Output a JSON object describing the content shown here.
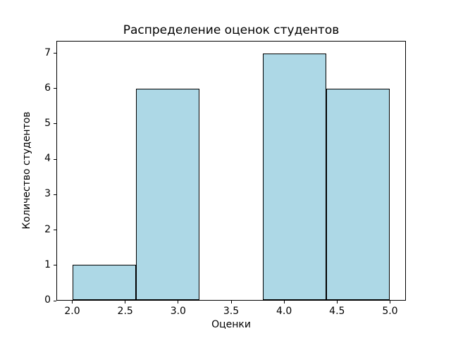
{
  "chart_data": {
    "type": "bar",
    "chart_kind": "histogram",
    "title": "Распределение оценок студентов",
    "xlabel": "Оценки",
    "ylabel": "Количество студентов",
    "bin_edges": [
      2.0,
      2.6,
      3.2,
      3.8,
      4.4,
      5.0
    ],
    "values": [
      1,
      6,
      0,
      7,
      6
    ],
    "xlim": [
      1.85,
      5.15
    ],
    "ylim": [
      0,
      7.35
    ],
    "xtick_values": [
      2.0,
      2.5,
      3.0,
      3.5,
      4.0,
      4.5,
      5.0
    ],
    "xtick_labels": [
      "2.0",
      "2.5",
      "3.0",
      "3.5",
      "4.0",
      "4.5",
      "5.0"
    ],
    "ytick_values": [
      0,
      1,
      2,
      3,
      4,
      5,
      6,
      7
    ],
    "ytick_labels": [
      "0",
      "1",
      "2",
      "3",
      "4",
      "5",
      "6",
      "7"
    ],
    "bar_fill": "#ADD8E6",
    "bar_edge": "#000000",
    "background": "#FFFFFF",
    "grid": false,
    "legend": null
  }
}
